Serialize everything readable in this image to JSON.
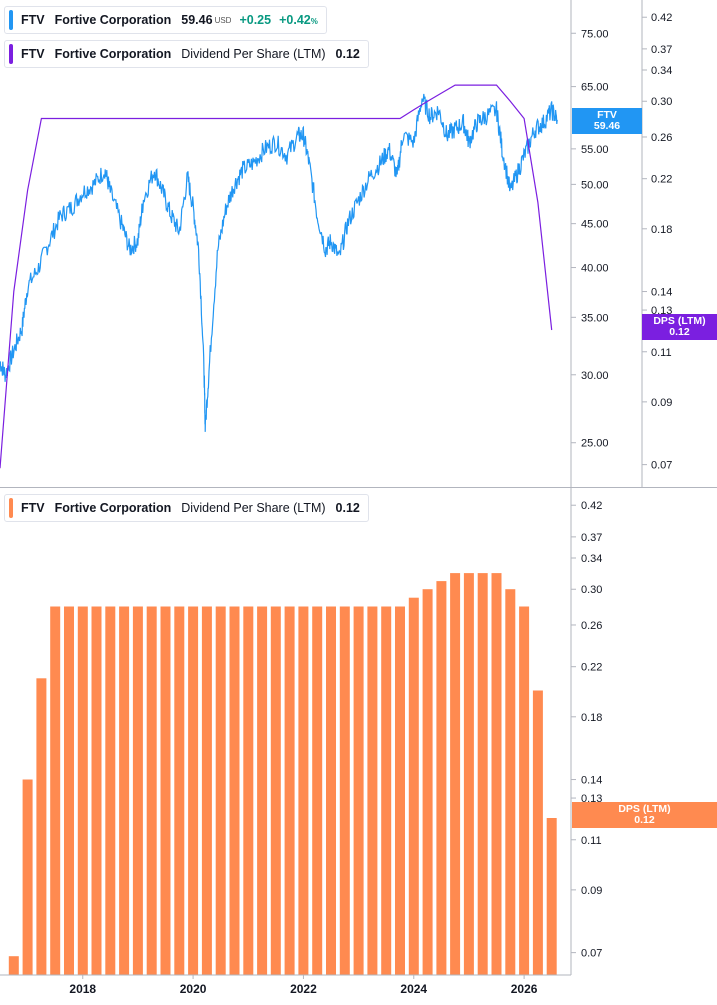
{
  "legends": {
    "price": {
      "symbol": "FTV",
      "name": "Fortive Corporation",
      "value": "59.46",
      "currency": "USD",
      "change": "+0.25",
      "change_pct": "+0.42",
      "pct_sign": "%",
      "color": "#2196f3"
    },
    "dps_top": {
      "symbol": "FTV",
      "name": "Fortive Corporation",
      "indicator": "Dividend Per Share (LTM)",
      "value": "0.12",
      "color": "#7b1fe0"
    },
    "dps_bottom": {
      "symbol": "FTV",
      "name": "Fortive Corporation",
      "indicator": "Dividend Per Share (LTM)",
      "value": "0.12",
      "color": "#ff8a50"
    }
  },
  "tags": {
    "price": {
      "line1": "FTV",
      "line2": "59.46",
      "color": "#2196f3"
    },
    "dps_top": {
      "line1": "DPS (LTM)",
      "line2": "0.12",
      "color": "#7b1fe0"
    },
    "dps_bottom": {
      "line1": "DPS (LTM)",
      "line2": "0.12",
      "color": "#ff8a50"
    }
  },
  "chart_data": [
    {
      "type": "line",
      "scale": "log",
      "x_range": [
        2016.5,
        2026.85
      ],
      "series": [
        {
          "name": "FTV",
          "axis": "price",
          "color": "#2196f3",
          "x": [
            2016.5,
            2016.6,
            2016.75,
            2016.9,
            2017.0,
            2017.2,
            2017.4,
            2017.6,
            2017.8,
            2018.0,
            2018.2,
            2018.4,
            2018.5,
            2018.7,
            2018.85,
            2019.0,
            2019.1,
            2019.3,
            2019.45,
            2019.6,
            2019.75,
            2019.9,
            2020.0,
            2020.1,
            2020.2,
            2020.22,
            2020.3,
            2020.45,
            2020.6,
            2020.75,
            2020.9,
            2021.1,
            2021.3,
            2021.5,
            2021.7,
            2021.9,
            2022.0,
            2022.1,
            2022.25,
            2022.4,
            2022.5,
            2022.65,
            2022.8,
            2023.0,
            2023.2,
            2023.4,
            2023.55,
            2023.7,
            2023.8,
            2024.0,
            2024.15,
            2024.3,
            2024.45,
            2024.6,
            2024.75,
            2024.9,
            2025.0,
            2025.15,
            2025.3,
            2025.5,
            2025.6,
            2025.75,
            2025.9,
            2026.05,
            2026.2,
            2026.35,
            2026.5,
            2026.6
          ],
          "values": [
            31,
            30,
            32,
            34,
            38,
            40,
            43,
            46,
            47,
            49,
            50,
            52,
            49,
            45,
            42,
            43,
            48,
            52,
            49,
            46,
            44,
            51,
            47,
            42,
            30,
            26,
            31,
            42,
            47,
            50,
            52,
            53,
            55,
            56,
            54,
            57,
            57,
            53,
            46,
            42,
            43,
            41,
            45,
            48,
            51,
            53,
            55,
            51,
            57,
            56,
            63,
            60,
            61,
            57,
            58,
            59,
            56,
            59,
            60,
            61,
            55,
            49,
            52,
            55,
            58,
            59,
            61,
            59.46
          ]
        },
        {
          "name": "DPS (LTM)",
          "axis": "dps",
          "color": "#7b1fe0",
          "x": [
            2016.5,
            2016.75,
            2017.0,
            2017.25,
            2017.5,
            2023.75,
            2024.0,
            2024.25,
            2024.5,
            2024.75,
            2025.0,
            2025.25,
            2025.5,
            2025.75,
            2026.0,
            2026.25,
            2026.5
          ],
          "values": [
            0.069,
            0.14,
            0.21,
            0.28,
            0.28,
            0.28,
            0.29,
            0.3,
            0.31,
            0.32,
            0.32,
            0.32,
            0.32,
            0.3,
            0.28,
            0.2,
            0.12
          ]
        }
      ],
      "price_axis": {
        "ticks": [
          "25.00",
          "30.00",
          "35.00",
          "40.00",
          "45.00",
          "50.00",
          "55.00",
          "65.00",
          "75.00"
        ],
        "range": [
          22.2,
          82
        ]
      },
      "dps_axis": {
        "ticks": [
          "0.07",
          "0.09",
          "0.11",
          "0.13",
          "0.14",
          "0.18",
          "0.22",
          "0.26",
          "0.30",
          "0.34",
          "0.37",
          "0.42"
        ],
        "range": [
          0.064,
          0.45
        ]
      }
    },
    {
      "type": "bar",
      "scale": "log",
      "series": [
        {
          "name": "Dividend Per Share (LTM)",
          "color": "#ff8a50",
          "x": [
            2016.75,
            2017.0,
            2017.25,
            2017.5,
            2017.75,
            2018.0,
            2018.25,
            2018.5,
            2018.75,
            2019.0,
            2019.25,
            2019.5,
            2019.75,
            2020.0,
            2020.25,
            2020.5,
            2020.75,
            2021.0,
            2021.25,
            2021.5,
            2021.75,
            2022.0,
            2022.25,
            2022.5,
            2022.75,
            2023.0,
            2023.25,
            2023.5,
            2023.75,
            2024.0,
            2024.25,
            2024.5,
            2024.75,
            2025.0,
            2025.25,
            2025.5,
            2025.75,
            2026.0,
            2026.25,
            2026.5
          ],
          "values": [
            0.069,
            0.14,
            0.21,
            0.28,
            0.28,
            0.28,
            0.28,
            0.28,
            0.28,
            0.28,
            0.28,
            0.28,
            0.28,
            0.28,
            0.28,
            0.28,
            0.28,
            0.28,
            0.28,
            0.28,
            0.28,
            0.28,
            0.28,
            0.28,
            0.28,
            0.28,
            0.28,
            0.28,
            0.28,
            0.29,
            0.3,
            0.31,
            0.32,
            0.32,
            0.32,
            0.32,
            0.3,
            0.28,
            0.2,
            0.12
          ]
        }
      ],
      "y_axis": {
        "ticks": [
          "0.07",
          "0.09",
          "0.11",
          "0.13",
          "0.14",
          "0.18",
          "0.22",
          "0.26",
          "0.30",
          "0.34",
          "0.37",
          "0.42"
        ],
        "range": [
          0.064,
          0.45
        ]
      },
      "x_axis": {
        "ticks": [
          "2018",
          "2020",
          "2022",
          "2024",
          "2026"
        ]
      }
    }
  ]
}
